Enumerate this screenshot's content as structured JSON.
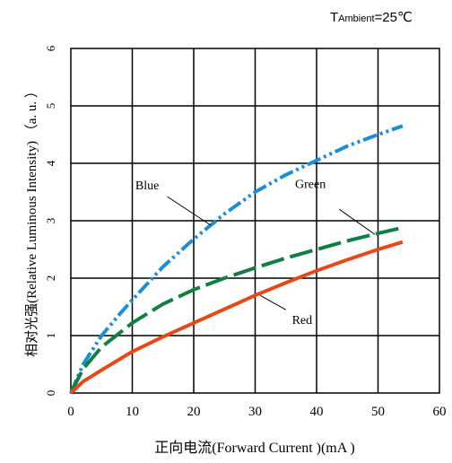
{
  "chart_data": {
    "type": "line",
    "title": "",
    "condition": {
      "prefix": "T",
      "subscript": "Ambient",
      "value": "=25℃"
    },
    "xlabel": "正向电流(Forward  Current )(mA )",
    "ylabel": "相对光强(Relative Luminous  Intensity) （a. u. ）",
    "xlim": [
      0,
      60
    ],
    "ylim": [
      0,
      6
    ],
    "x_ticks": [
      "0",
      "10",
      "20",
      "30",
      "40",
      "50",
      "60"
    ],
    "y_ticks": [
      "0",
      "1",
      "2",
      "3",
      "4",
      "5",
      "6"
    ],
    "grid": true,
    "series": [
      {
        "name": "Blue",
        "color": "#1a8fd8",
        "dash": "dash-dot-dot",
        "x": [
          0,
          2,
          5,
          8,
          10,
          15,
          20,
          25,
          30,
          35,
          40,
          45,
          50,
          54
        ],
        "y": [
          0,
          0.5,
          1.0,
          1.38,
          1.62,
          2.2,
          2.68,
          3.12,
          3.5,
          3.8,
          4.05,
          4.3,
          4.5,
          4.65
        ]
      },
      {
        "name": "Green",
        "color": "#108040",
        "dash": "long-dash",
        "x": [
          0,
          2,
          5,
          10,
          15,
          20,
          25,
          30,
          35,
          40,
          45,
          50,
          54
        ],
        "y": [
          0,
          0.42,
          0.8,
          1.22,
          1.55,
          1.8,
          2.0,
          2.18,
          2.35,
          2.5,
          2.65,
          2.78,
          2.88
        ]
      },
      {
        "name": "Red",
        "color": "#e84818",
        "dash": "solid",
        "x": [
          0,
          2,
          5,
          10,
          15,
          20,
          25,
          30,
          35,
          40,
          45,
          50,
          54
        ],
        "y": [
          0,
          0.2,
          0.4,
          0.72,
          0.98,
          1.22,
          1.46,
          1.7,
          1.92,
          2.13,
          2.32,
          2.5,
          2.63
        ]
      }
    ],
    "annotations": [
      {
        "text": "Blue",
        "series": "Blue",
        "tx": 10.5,
        "ty": 3.55,
        "lx0": 15.7,
        "ly0": 3.42,
        "lx1": 22.8,
        "ly1": 2.92
      },
      {
        "text": "Green",
        "series": "Green",
        "tx": 36.5,
        "ty": 3.57,
        "lx0": 43.7,
        "ly0": 3.2,
        "lx1": 49.5,
        "ly1": 2.76
      },
      {
        "text": "Red",
        "series": "Red",
        "tx": 36,
        "ty": 1.2,
        "lx0": 35,
        "ly0": 1.45,
        "lx1": 30.8,
        "ly1": 1.7
      }
    ]
  }
}
